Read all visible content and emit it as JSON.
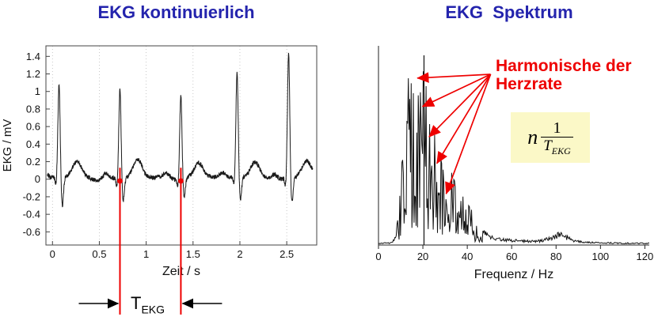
{
  "page": {
    "background": "#ffffff",
    "title_color": "#2424ad",
    "annotation_red": "#ee0000"
  },
  "chart_data": [
    {
      "id": "ekg-time",
      "type": "line",
      "title": "EKG kontinuierlich",
      "xlabel": "Zeit / s",
      "ylabel": "EKG / mV",
      "xlim": [
        -0.07,
        2.82
      ],
      "ylim": [
        -0.75,
        1.52
      ],
      "xticks": [
        0,
        0.5,
        1,
        1.5,
        2,
        2.5
      ],
      "yticks": [
        1.4,
        1.2,
        1,
        0.8,
        0.6,
        0.4,
        0.2,
        0,
        -0.2,
        -0.4,
        -0.6
      ],
      "grid": "faint-vertical-dotted",
      "line_color": "#1a1a1a",
      "beats": [
        {
          "t": 0.07,
          "r": 1.05,
          "s": -0.35
        },
        {
          "t": 0.72,
          "r": 1.02,
          "s": -0.26
        },
        {
          "t": 1.37,
          "r": 0.95,
          "s": -0.22
        },
        {
          "t": 1.97,
          "r": 1.18,
          "s": -0.28
        },
        {
          "t": 2.52,
          "r": 1.42,
          "s": -0.3
        }
      ],
      "period_markers": [
        0.72,
        1.37
      ],
      "period_label": {
        "base": "T",
        "sub": "EKG"
      },
      "marker_color": "#ee0000"
    },
    {
      "id": "ekg-spectrum",
      "type": "line",
      "title": "EKG  Spektrum",
      "xlabel": "Frequenz / Hz",
      "xlim": [
        0,
        122
      ],
      "ylim": [
        0,
        1.05
      ],
      "xticks": [
        0,
        20,
        40,
        60,
        80,
        100,
        120
      ],
      "grid": "none",
      "line_color": "#111111",
      "spectral_envelope": [
        [
          0,
          0.012
        ],
        [
          5,
          0.015
        ],
        [
          7,
          0.03
        ],
        [
          8,
          0.09
        ],
        [
          9,
          0.22
        ],
        [
          10,
          0.45
        ],
        [
          11,
          0.62
        ],
        [
          12,
          0.78
        ],
        [
          13,
          0.85
        ],
        [
          14,
          0.93
        ],
        [
          15,
          0.88
        ],
        [
          16,
          0.97
        ],
        [
          17,
          0.92
        ],
        [
          18,
          0.88
        ],
        [
          19,
          0.95
        ],
        [
          20,
          0.97
        ],
        [
          21,
          0.9
        ],
        [
          22,
          0.86
        ],
        [
          23,
          0.8
        ],
        [
          24,
          0.74
        ],
        [
          25,
          0.69
        ],
        [
          26,
          0.63
        ],
        [
          27,
          0.57
        ],
        [
          28,
          0.52
        ],
        [
          30,
          0.46
        ],
        [
          32,
          0.41
        ],
        [
          34,
          0.35
        ],
        [
          36,
          0.31
        ],
        [
          38,
          0.27
        ],
        [
          40,
          0.23
        ],
        [
          42,
          0.19
        ],
        [
          44,
          0.15
        ],
        [
          46,
          0.11
        ],
        [
          48,
          0.08
        ],
        [
          50,
          0.06
        ],
        [
          55,
          0.04
        ],
        [
          60,
          0.032
        ],
        [
          65,
          0.027
        ],
        [
          70,
          0.025
        ],
        [
          74,
          0.03
        ],
        [
          78,
          0.05
        ],
        [
          80,
          0.065
        ],
        [
          82,
          0.07
        ],
        [
          84,
          0.058
        ],
        [
          86,
          0.042
        ],
        [
          88,
          0.03
        ],
        [
          90,
          0.024
        ],
        [
          95,
          0.018
        ],
        [
          100,
          0.015
        ],
        [
          110,
          0.013
        ],
        [
          120,
          0.012
        ]
      ],
      "fundamental_peak": {
        "f": 20.5,
        "amp": 1.0
      },
      "harmonic_arrows": {
        "origin": [
          50.5,
          0.9
        ],
        "targets": [
          [
            17.5,
            0.88
          ],
          [
            19.8,
            0.73
          ],
          [
            22.8,
            0.57
          ],
          [
            26.3,
            0.43
          ],
          [
            30.5,
            0.27
          ]
        ]
      }
    }
  ],
  "annotations": {
    "harmonics_label": {
      "line1": "Harmonische der",
      "line2": "Herzrate"
    },
    "formula": {
      "factor": "n",
      "numerator": "1",
      "denominator_base": "T",
      "denominator_sub": "EKG",
      "background": "#fbf8c7"
    }
  }
}
